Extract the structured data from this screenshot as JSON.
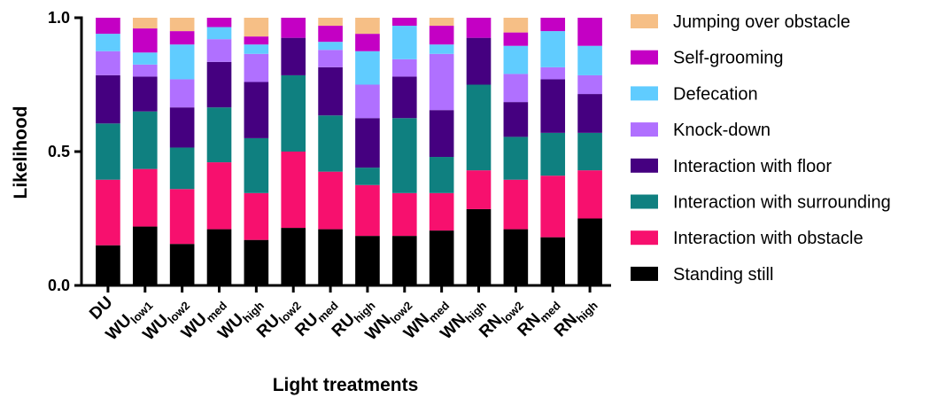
{
  "chart_data": {
    "type": "bar",
    "stacked": true,
    "xlabel": "Light treatments",
    "ylabel": "Likelihood",
    "ylim": [
      0,
      1
    ],
    "yticks": [
      "0.0",
      "0.5",
      "1.0"
    ],
    "legend_position": "right",
    "categories": [
      {
        "main": "DU",
        "sub": ""
      },
      {
        "main": "WU",
        "sub": "low1"
      },
      {
        "main": "WU",
        "sub": "low2"
      },
      {
        "main": "WU",
        "sub": "med"
      },
      {
        "main": "WU",
        "sub": "high"
      },
      {
        "main": "RU",
        "sub": "low2"
      },
      {
        "main": "RU",
        "sub": "med"
      },
      {
        "main": "RU",
        "sub": "high"
      },
      {
        "main": "WN",
        "sub": "low2"
      },
      {
        "main": "WN",
        "sub": "med"
      },
      {
        "main": "WN",
        "sub": "high"
      },
      {
        "main": "RN",
        "sub": "low2"
      },
      {
        "main": "RN",
        "sub": "med"
      },
      {
        "main": "RN",
        "sub": "high"
      }
    ],
    "series": [
      {
        "name": "Standing still",
        "color": "#000000",
        "values": [
          0.15,
          0.22,
          0.155,
          0.21,
          0.17,
          0.215,
          0.21,
          0.185,
          0.185,
          0.205,
          0.285,
          0.21,
          0.18,
          0.25
        ]
      },
      {
        "name": "Interaction with obstacle",
        "color": "#f7106e",
        "values": [
          0.245,
          0.215,
          0.205,
          0.25,
          0.175,
          0.285,
          0.215,
          0.19,
          0.16,
          0.14,
          0.145,
          0.185,
          0.23,
          0.18
        ]
      },
      {
        "name": "Interaction with surrounding",
        "color": "#0f8080",
        "values": [
          0.21,
          0.215,
          0.155,
          0.205,
          0.205,
          0.285,
          0.21,
          0.065,
          0.28,
          0.135,
          0.32,
          0.16,
          0.16,
          0.14
        ]
      },
      {
        "name": "Interaction with floor",
        "color": "#450080",
        "values": [
          0.18,
          0.13,
          0.15,
          0.17,
          0.21,
          0.14,
          0.18,
          0.185,
          0.155,
          0.175,
          0.175,
          0.13,
          0.2,
          0.145
        ]
      },
      {
        "name": "Knock-down",
        "color": "#b070ff",
        "values": [
          0.09,
          0.045,
          0.105,
          0.085,
          0.105,
          0.0,
          0.065,
          0.125,
          0.065,
          0.21,
          0.0,
          0.105,
          0.045,
          0.07
        ]
      },
      {
        "name": "Defecation",
        "color": "#60ccff",
        "values": [
          0.065,
          0.045,
          0.13,
          0.045,
          0.035,
          0.0,
          0.03,
          0.125,
          0.125,
          0.035,
          0.0,
          0.105,
          0.135,
          0.11
        ]
      },
      {
        "name": "Self-grooming",
        "color": "#c400c4",
        "values": [
          0.06,
          0.09,
          0.05,
          0.035,
          0.03,
          0.075,
          0.06,
          0.065,
          0.03,
          0.07,
          0.075,
          0.05,
          0.05,
          0.105
        ]
      },
      {
        "name": "Jumping over obstacle",
        "color": "#f6bf86",
        "values": [
          0.0,
          0.04,
          0.05,
          0.0,
          0.07,
          0.0,
          0.03,
          0.06,
          0.0,
          0.03,
          0.0,
          0.055,
          0.0,
          0.0
        ]
      }
    ],
    "legend_order": [
      "Jumping over obstacle",
      "Self-grooming",
      "Defecation",
      "Knock-down",
      "Interaction with floor",
      "Interaction with surrounding",
      "Interaction with obstacle",
      "Standing still"
    ]
  }
}
